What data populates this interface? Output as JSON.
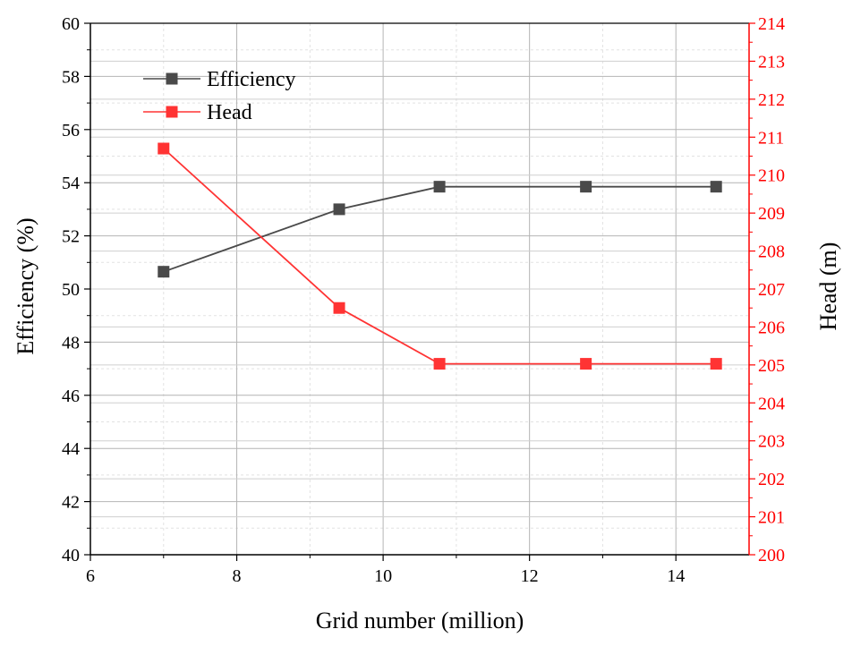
{
  "chart_data": {
    "type": "line",
    "xlabel": "Grid number (million)",
    "ylabel": "Efficiency (%)",
    "y2label": "Head (m)",
    "xlim": [
      6,
      15
    ],
    "ylim": [
      40,
      60
    ],
    "y2lim": [
      200,
      214
    ],
    "x_ticks": [
      6,
      8,
      10,
      12,
      14
    ],
    "y_ticks": [
      40,
      42,
      44,
      46,
      48,
      50,
      52,
      54,
      56,
      58,
      60
    ],
    "y2_ticks": [
      200,
      201,
      202,
      203,
      204,
      205,
      206,
      207,
      208,
      209,
      210,
      211,
      212,
      213,
      214
    ],
    "grid": true,
    "legend_position": "top-left",
    "series": [
      {
        "name": "Efficiency",
        "axis": "left",
        "color": "#4a4a4a",
        "x": [
          7.0,
          9.4,
          10.77,
          12.77,
          14.55
        ],
        "values": [
          50.65,
          53.0,
          53.85,
          53.85,
          53.85
        ]
      },
      {
        "name": "Head",
        "axis": "right",
        "color": "#ff3333",
        "x": [
          7.0,
          9.4,
          10.77,
          12.77,
          14.55
        ],
        "values": [
          210.7,
          206.5,
          205.03,
          205.03,
          205.03
        ]
      }
    ],
    "colors": {
      "left_axis": "#000000",
      "right_axis": "#ff0000"
    }
  }
}
